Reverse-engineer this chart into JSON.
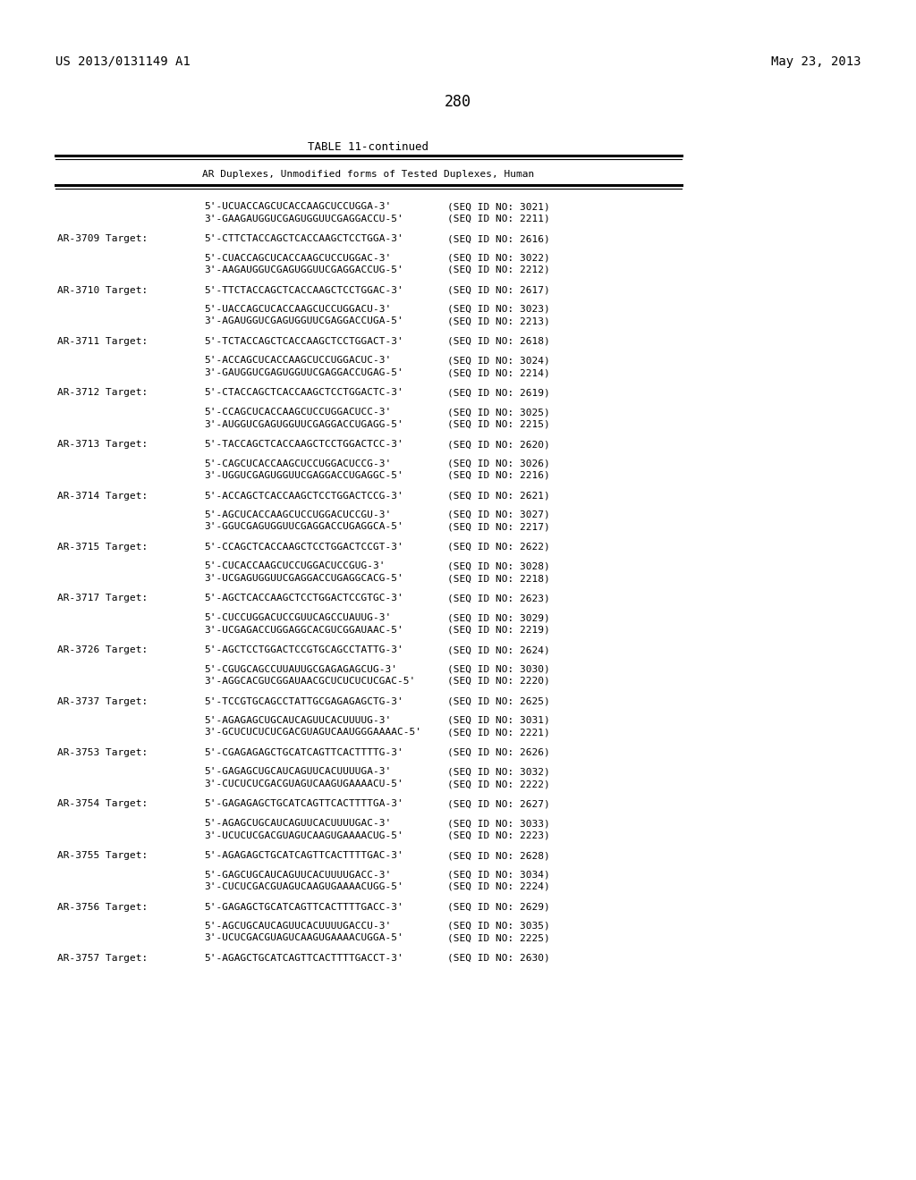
{
  "header_left": "US 2013/0131149 A1",
  "header_right": "May 23, 2013",
  "page_number": "280",
  "table_title": "TABLE 11-continued",
  "table_subtitle": "AR Duplexes, Unmodified forms of Tested Duplexes, Human",
  "background_color": "#ffffff",
  "entries": [
    {
      "seq1": "5'-UCUACCAGCUCACCAAGCUCCUGGA-3'",
      "seq1_id": "(SEQ ID NO: 3021)",
      "seq2": "3'-GAAGAUGGUCGAGUGGUUCGAGGACCU-5'",
      "seq2_id": "(SEQ ID NO: 2211)"
    },
    {
      "target_label": "AR-3709 Target:",
      "target_seq": "5'-CTTCTACCAGCTCACCAAGCTCCTGGA-3'",
      "target_id": "(SEQ ID NO: 2616)",
      "seq1": "5'-CUACCAGCUCACCAAGCUCCUGGAC-3'",
      "seq1_id": "(SEQ ID NO: 3022)",
      "seq2": "3'-AAGAUGGUCGAGUGGUUCGAGGACCUG-5'",
      "seq2_id": "(SEQ ID NO: 2212)"
    },
    {
      "target_label": "AR-3710 Target:",
      "target_seq": "5'-TTCTACCAGCTCACCAAGCTCCTGGAC-3'",
      "target_id": "(SEQ ID NO: 2617)",
      "seq1": "5'-UACCAGCUCACCAAGCUCCUGGACU-3'",
      "seq1_id": "(SEQ ID NO: 3023)",
      "seq2": "3'-AGAUGGUCGAGUGGUUCGAGGACCUGA-5'",
      "seq2_id": "(SEQ ID NO: 2213)"
    },
    {
      "target_label": "AR-3711 Target:",
      "target_seq": "5'-TCTACCAGCTCACCAAGCTCCTGGACT-3'",
      "target_id": "(SEQ ID NO: 2618)",
      "seq1": "5'-ACCAGCUCACCAAGCUCCUGGACUC-3'",
      "seq1_id": "(SEQ ID NO: 3024)",
      "seq2": "3'-GAUGGUCGAGUGGUUCGAGGACCUGAG-5'",
      "seq2_id": "(SEQ ID NO: 2214)"
    },
    {
      "target_label": "AR-3712 Target:",
      "target_seq": "5'-CTACCAGCTCACCAAGCTCCTGGACTC-3'",
      "target_id": "(SEQ ID NO: 2619)",
      "seq1": "5'-CCAGCUCACCAAGCUCCUGGACUCC-3'",
      "seq1_id": "(SEQ ID NO: 3025)",
      "seq2": "3'-AUGGUCGAGUGGUUCGAGGACCUGAGG-5'",
      "seq2_id": "(SEQ ID NO: 2215)"
    },
    {
      "target_label": "AR-3713 Target:",
      "target_seq": "5'-TACCAGCTCACCAAGCTCCTGGACTCC-3'",
      "target_id": "(SEQ ID NO: 2620)",
      "seq1": "5'-CAGCUCACCAAGCUCCUGGACUCCG-3'",
      "seq1_id": "(SEQ ID NO: 3026)",
      "seq2": "3'-UGGUCGAGUGGUUCGAGGACCUGAGGC-5'",
      "seq2_id": "(SEQ ID NO: 2216)"
    },
    {
      "target_label": "AR-3714 Target:",
      "target_seq": "5'-ACCAGCTCACCAAGCTCCTGGACTCCG-3'",
      "target_id": "(SEQ ID NO: 2621)",
      "seq1": "5'-AGCUCACCAAGCUCCUGGACUCCGU-3'",
      "seq1_id": "(SEQ ID NO: 3027)",
      "seq2": "3'-GGUCGAGUGGUUCGAGGACCUGAGGCA-5'",
      "seq2_id": "(SEQ ID NO: 2217)"
    },
    {
      "target_label": "AR-3715 Target:",
      "target_seq": "5'-CCAGCTCACCAAGCTCCTGGACTCCGT-3'",
      "target_id": "(SEQ ID NO: 2622)",
      "seq1": "5'-CUCACCAAGCUCCUGGACUCCGUG-3'",
      "seq1_id": "(SEQ ID NO: 3028)",
      "seq2": "3'-UCGAGUGGUUCGAGGACCUGAGGCACG-5'",
      "seq2_id": "(SEQ ID NO: 2218)"
    },
    {
      "target_label": "AR-3717 Target:",
      "target_seq": "5'-AGCTCACCAAGCTCCTGGACTCCGTGC-3'",
      "target_id": "(SEQ ID NO: 2623)",
      "seq1": "5'-CUCCUGGACUCCGUUCAGCCUAUUG-3'",
      "seq1_id": "(SEQ ID NO: 3029)",
      "seq2": "3'-UCGAGACCUGGAGGCACGUCGGAUAAC-5'",
      "seq2_id": "(SEQ ID NO: 2219)"
    },
    {
      "target_label": "AR-3726 Target:",
      "target_seq": "5'-AGCTCCTGGACTCCGTGCAGCCTATTG-3'",
      "target_id": "(SEQ ID NO: 2624)",
      "seq1": "5'-CGUGCAGCCUUAUUGCGAGAGAGCUG-3'",
      "seq1_id": "(SEQ ID NO: 3030)",
      "seq2": "3'-AGGCACGUCGGAUAACGCUCUCUCUCGAC-5'",
      "seq2_id": "(SEQ ID NO: 2220)"
    },
    {
      "target_label": "AR-3737 Target:",
      "target_seq": "5'-TCCGTGCAGCCTATTGCGAGAGAGCTG-3'",
      "target_id": "(SEQ ID NO: 2625)",
      "seq1": "5'-AGAGAGCUGCAUCAGUUCACUUUUG-3'",
      "seq1_id": "(SEQ ID NO: 3031)",
      "seq2": "3'-GCUCUCUCUCGACGUAGUCAAUGGGAAAAC-5'",
      "seq2_id": "(SEQ ID NO: 2221)"
    },
    {
      "target_label": "AR-3753 Target:",
      "target_seq": "5'-CGAGAGAGCTGCATCAGTTCACTTTTG-3'",
      "target_id": "(SEQ ID NO: 2626)",
      "seq1": "5'-GAGAGCUGCAUCAGUUCACUUUUGA-3'",
      "seq1_id": "(SEQ ID NO: 3032)",
      "seq2": "3'-CUCUCUCGACGUAGUCAAGUGAAAACU-5'",
      "seq2_id": "(SEQ ID NO: 2222)"
    },
    {
      "target_label": "AR-3754 Target:",
      "target_seq": "5'-GAGAGAGCTGCATCAGTTCACTTTTGA-3'",
      "target_id": "(SEQ ID NO: 2627)",
      "seq1": "5'-AGAGCUGCAUCAGUUCACUUUUGAC-3'",
      "seq1_id": "(SEQ ID NO: 3033)",
      "seq2": "3'-UCUCUCGACGUAGUCAAGUGAAAACUG-5'",
      "seq2_id": "(SEQ ID NO: 2223)"
    },
    {
      "target_label": "AR-3755 Target:",
      "target_seq": "5'-AGAGAGCTGCATCAGTTCACTTTTGAC-3'",
      "target_id": "(SEQ ID NO: 2628)",
      "seq1": "5'-GAGCUGCAUCAGUUCACUUUUGACC-3'",
      "seq1_id": "(SEQ ID NO: 3034)",
      "seq2": "3'-CUCUCGACGUAGUCAAGUGAAAACUGG-5'",
      "seq2_id": "(SEQ ID NO: 2224)"
    },
    {
      "target_label": "AR-3756 Target:",
      "target_seq": "5'-GAGAGCTGCATCAGTTCACTTTTGACC-3'",
      "target_id": "(SEQ ID NO: 2629)",
      "seq1": "5'-AGCUGCAUCAGUUCACUUUUGACCU-3'",
      "seq1_id": "(SEQ ID NO: 3035)",
      "seq2": "3'-UCUCGACGUAGUCAAGUGAAAACUGGA-5'",
      "seq2_id": "(SEQ ID NO: 2225)"
    },
    {
      "target_label": "AR-3757 Target:",
      "target_seq": "5'-AGAGCTGCATCAGTTCACTTTTGACCT-3'",
      "target_id": "(SEQ ID NO: 2630)"
    }
  ]
}
